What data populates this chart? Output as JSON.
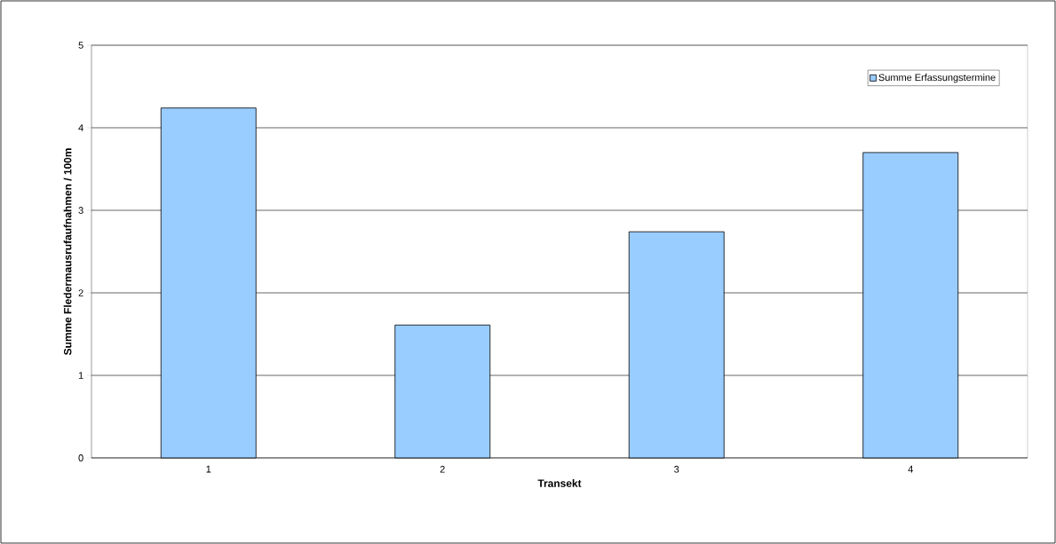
{
  "chart_data": {
    "type": "bar",
    "xlabel": "Transekt",
    "ylabel": "Summe Fledermausrufaufnahmen / 100m",
    "categories": [
      "1",
      "2",
      "3",
      "4"
    ],
    "series": [
      {
        "name": "Summe Erfassungstermine",
        "color": "#99ccff",
        "values": [
          4.24,
          1.61,
          2.74,
          3.7
        ]
      }
    ],
    "ylim": [
      0,
      5
    ],
    "yticks": [
      0,
      1,
      2,
      3,
      4,
      5
    ],
    "grid": "y",
    "legend": "top right"
  }
}
